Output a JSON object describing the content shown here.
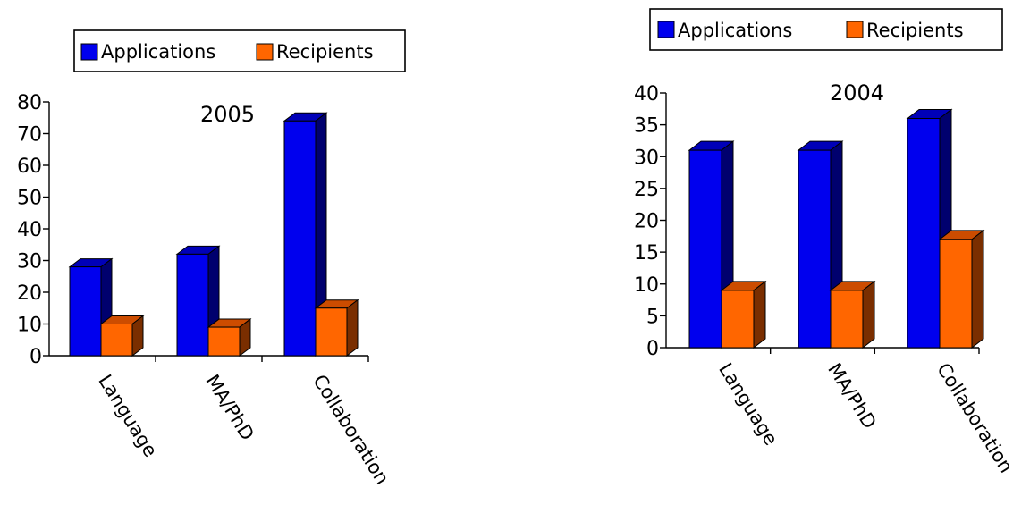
{
  "colors": {
    "applications": {
      "front": "#0000ee",
      "top": "#0000b8",
      "side": "#00006e"
    },
    "recipients": {
      "front": "#ff6600",
      "top": "#cc4c00",
      "side": "#7a2e00"
    }
  },
  "chart_data": [
    {
      "type": "bar",
      "title": "2005",
      "categories": [
        "Language",
        "MA/PhD",
        "Collaboration"
      ],
      "series": [
        {
          "name": "Applications",
          "values": [
            28,
            32,
            74
          ]
        },
        {
          "name": "Recipients",
          "values": [
            10,
            9,
            15
          ]
        }
      ],
      "ylim": [
        0,
        80
      ],
      "yticks": [
        0,
        10,
        20,
        30,
        40,
        50,
        60,
        70,
        80
      ],
      "legend": "top",
      "grid": false
    },
    {
      "type": "bar",
      "title": "2004",
      "categories": [
        "Language",
        "MA/PhD",
        "Collaboration"
      ],
      "series": [
        {
          "name": "Applications",
          "values": [
            31,
            31,
            36
          ]
        },
        {
          "name": "Recipients",
          "values": [
            9,
            9,
            17
          ]
        }
      ],
      "ylim": [
        0,
        40
      ],
      "yticks": [
        0,
        5,
        10,
        15,
        20,
        25,
        30,
        35,
        40
      ],
      "legend": "top",
      "grid": false
    }
  ]
}
